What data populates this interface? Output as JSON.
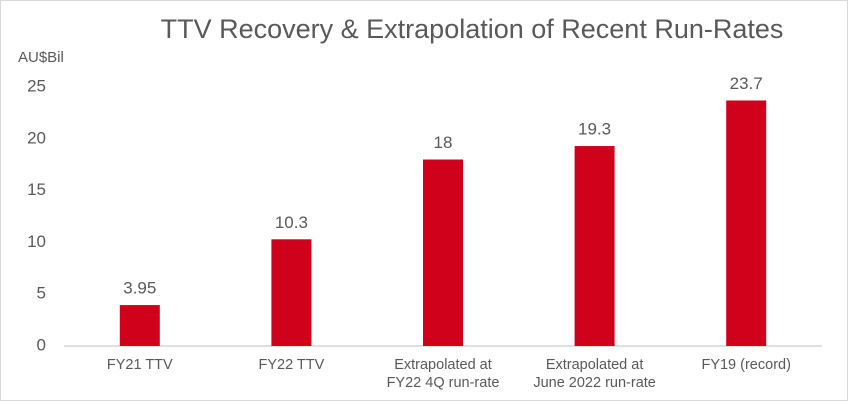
{
  "chart_data": {
    "type": "bar",
    "title": "TTV Recovery & Extrapolation of Recent Run-Rates",
    "y_label": "AU$Bil",
    "categories": [
      [
        "FY21 TTV"
      ],
      [
        "FY22 TTV"
      ],
      [
        "Extrapolated at",
        "FY22 4Q run-rate"
      ],
      [
        "Extrapolated at",
        "June 2022 run-rate"
      ],
      [
        "FY19 (record)"
      ]
    ],
    "values": [
      3.95,
      10.3,
      18,
      19.3,
      23.7
    ],
    "color": "#d0021b",
    "ylim": [
      0,
      25
    ],
    "yticks": [
      0,
      5,
      10,
      15,
      20,
      25
    ],
    "grid": false
  }
}
